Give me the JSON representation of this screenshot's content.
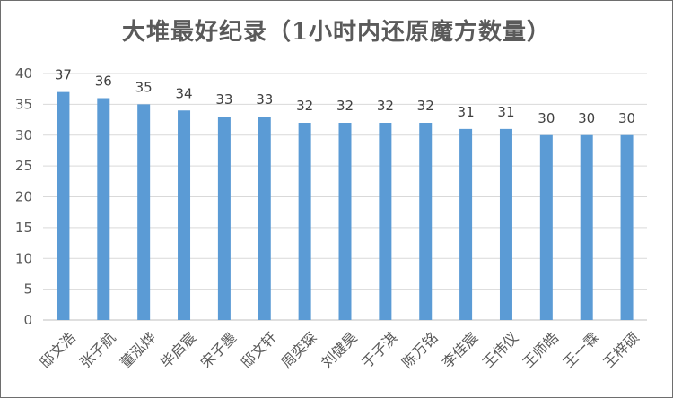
{
  "chart_data": {
    "type": "bar",
    "title": "大堆最好纪录（1小时内还原魔方数量）",
    "xlabel": "",
    "ylabel": "",
    "categories": [
      "邸文浩",
      "张子航",
      "董泓烨",
      "毕启宸",
      "宋子墨",
      "邸文轩",
      "周奕琛",
      "刘健昊",
      "于子淇",
      "陈万铭",
      "李佳宸",
      "王伟仪",
      "王师皓",
      "王一霖",
      "王梓硕"
    ],
    "values": [
      37,
      36,
      35,
      34,
      33,
      33,
      32,
      32,
      32,
      32,
      31,
      31,
      30,
      30,
      30
    ],
    "ylim": [
      0,
      40
    ],
    "yticks": [
      0,
      5,
      10,
      15,
      20,
      25,
      30,
      35,
      40
    ],
    "grid": true,
    "legend": "none",
    "bar_color": "#5b9bd5"
  }
}
